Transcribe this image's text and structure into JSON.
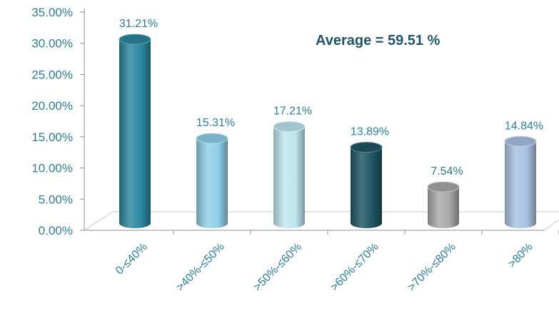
{
  "chart_data": {
    "type": "bar",
    "title": "",
    "xlabel": "",
    "ylabel": "",
    "categories": [
      "0-≤40%",
      ">40%-≤50%",
      ">50%-≤60%",
      ">60%-≤70%",
      ">70%-≤80%",
      ">80%"
    ],
    "values": [
      31.21,
      15.31,
      17.21,
      13.89,
      7.54,
      14.84
    ],
    "value_labels": [
      "31.21%",
      "15.31%",
      "17.21%",
      "13.89%",
      "7.54%",
      "14.84%"
    ],
    "bar_colors": [
      "#2b879f",
      "#8fd0e6",
      "#bfe6f0",
      "#1e5563",
      "#a9a9a9",
      "#aac3e3"
    ],
    "y_tick_labels": [
      "0.00%",
      "5.00%",
      "10.00%",
      "15.00%",
      "20.00%",
      "25.00%",
      "30.00%",
      "35.00%"
    ],
    "ylim": [
      0,
      35
    ],
    "y_tick_step": 5,
    "grid": false,
    "annotation": "Average = 59.51 %",
    "style": "3d-cylinder"
  }
}
